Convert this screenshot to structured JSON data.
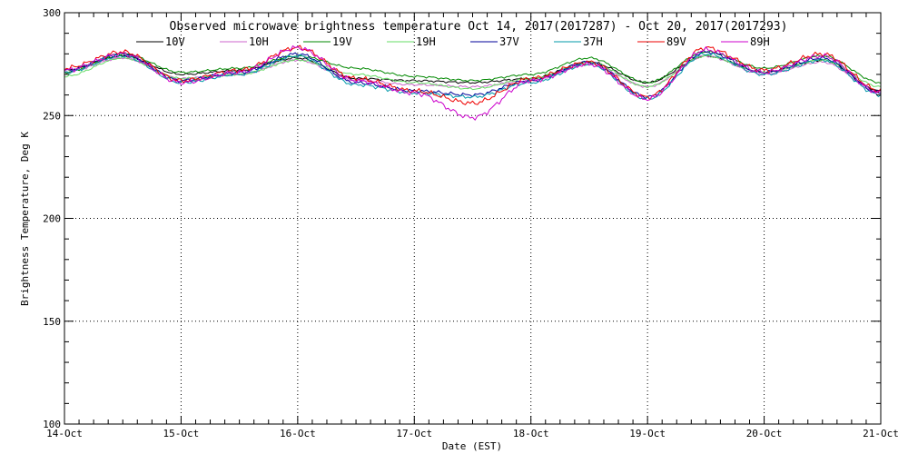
{
  "chart_data": {
    "type": "line",
    "title": "Observed microwave brightness temperature Oct 14, 2017(2017287) - Oct 20, 2017(2017293)",
    "xlabel": "Date (EST)",
    "ylabel": "Brightness Temperature, Deg K",
    "xlim": [
      "14-Oct",
      "21-Oct"
    ],
    "ylim": [
      100,
      300
    ],
    "grid": true,
    "legend_placement": "top",
    "x_ticks": [
      "14-Oct",
      "15-Oct",
      "16-Oct",
      "17-Oct",
      "18-Oct",
      "19-Oct",
      "20-Oct",
      "21-Oct"
    ],
    "y_ticks": [
      100,
      150,
      200,
      250,
      300
    ],
    "x_hours": [
      0,
      12,
      24,
      36,
      48,
      60,
      72,
      84,
      96,
      108,
      120,
      132,
      144,
      156,
      168
    ],
    "series": [
      {
        "name": "10V",
        "color": "#000000",
        "values": [
          272,
          279,
          270,
          272,
          278,
          268,
          267,
          266,
          268,
          276,
          266,
          279,
          271,
          277,
          262
        ]
      },
      {
        "name": "10H",
        "color": "#cc66cc",
        "values": [
          271,
          278,
          268,
          270,
          277,
          267,
          265,
          264,
          267,
          275,
          264,
          279,
          270,
          276,
          261
        ]
      },
      {
        "name": "19V",
        "color": "#008800",
        "values": [
          271,
          280,
          271,
          273,
          279,
          273,
          269,
          267,
          270,
          278,
          266,
          281,
          273,
          279,
          266
        ]
      },
      {
        "name": "19H",
        "color": "#66dd66",
        "values": [
          269,
          278,
          268,
          270,
          277,
          270,
          266,
          263,
          268,
          276,
          264,
          279,
          271,
          277,
          264
        ]
      },
      {
        "name": "37V",
        "color": "#000099",
        "values": [
          272,
          280,
          267,
          271,
          280,
          266,
          262,
          260,
          267,
          276,
          259,
          281,
          271,
          278,
          261
        ]
      },
      {
        "name": "37H",
        "color": "#0099aa",
        "values": [
          271,
          279,
          266,
          270,
          279,
          265,
          261,
          259,
          266,
          275,
          258,
          280,
          270,
          277,
          260
        ]
      },
      {
        "name": "89V",
        "color": "#ee0000",
        "values": [
          273,
          281,
          267,
          272,
          283,
          268,
          262,
          256,
          268,
          276,
          259,
          283,
          272,
          280,
          262
        ]
      },
      {
        "name": "89H",
        "color": "#cc00cc",
        "values": [
          272,
          280,
          266,
          271,
          283,
          267,
          261,
          249,
          267,
          275,
          258,
          282,
          271,
          279,
          261
        ]
      }
    ]
  }
}
